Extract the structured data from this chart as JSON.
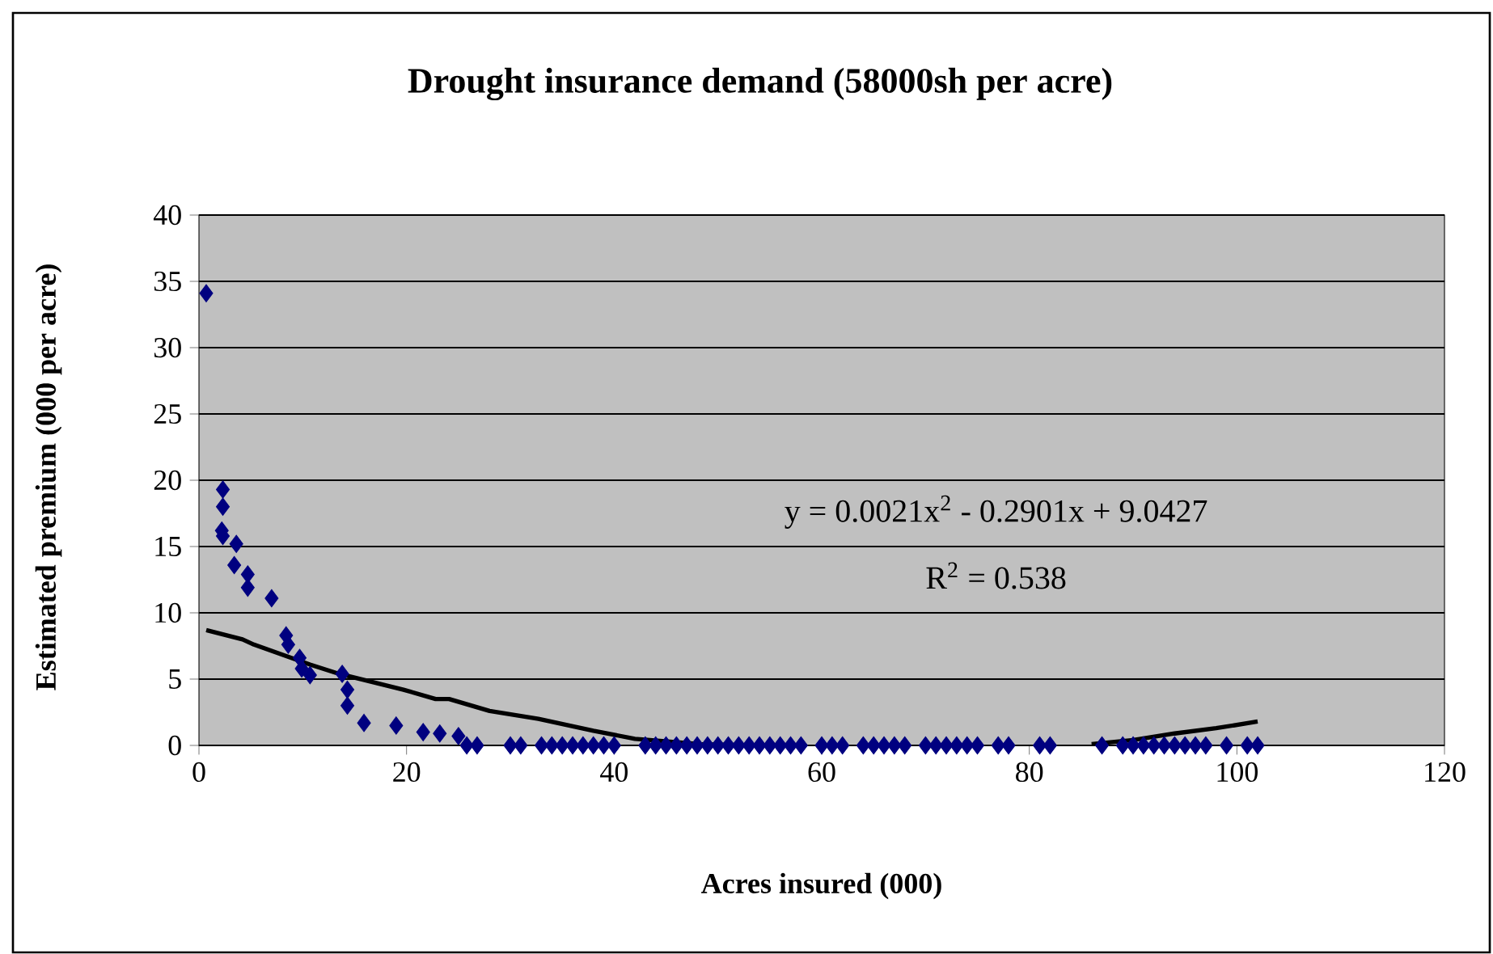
{
  "chart_data": {
    "type": "scatter",
    "title": "Drought insurance demand (58000sh per acre)",
    "xlabel": "Acres insured (000)",
    "ylabel": "Estimated premium (000 per acre)",
    "xlim": [
      0,
      120
    ],
    "ylim": [
      0,
      40
    ],
    "xticks": [
      0,
      20,
      40,
      60,
      80,
      100,
      120
    ],
    "yticks": [
      0,
      5,
      10,
      15,
      20,
      25,
      30,
      35,
      40
    ],
    "grid": "y",
    "marker": "diamond",
    "annotations": [
      "y = 0.0021x$^{2}$ - 0.2901x + 9.0427",
      "R$^{2}$ = 0.538"
    ],
    "series": [
      {
        "color": "#000080",
        "x": [
          0.7,
          2.3,
          2.3,
          2.2,
          2.3,
          3.6,
          3.4,
          4.7,
          4.7,
          7.0,
          8.4,
          8.6,
          9.7,
          9.9,
          10.7,
          13.8,
          14.3,
          14.3,
          15.9,
          19.0,
          21.6,
          23.2,
          25.0,
          25.8,
          26.8,
          30,
          31,
          33,
          34,
          35,
          36,
          37,
          38,
          39,
          40,
          43,
          44,
          45,
          46,
          47,
          48,
          49,
          50,
          51,
          52,
          53,
          54,
          55,
          56,
          57,
          58,
          60,
          61,
          62,
          64,
          65,
          66,
          67,
          68,
          70,
          71,
          72,
          73,
          74,
          75,
          77,
          78,
          81,
          82,
          87,
          89,
          90,
          91,
          92,
          93,
          94,
          95,
          96,
          97,
          99,
          101,
          102
        ],
        "values": [
          34.1,
          19.3,
          18.0,
          16.2,
          15.8,
          15.2,
          13.6,
          12.9,
          11.9,
          11.1,
          8.3,
          7.6,
          6.6,
          5.8,
          5.3,
          5.4,
          4.2,
          3.0,
          1.7,
          1.5,
          1.0,
          0.9,
          0.7,
          0,
          0,
          0,
          0,
          0,
          0,
          0,
          0,
          0,
          0,
          0,
          0,
          0,
          0,
          0,
          0,
          0,
          0,
          0,
          0,
          0,
          0,
          0,
          0,
          0,
          0,
          0,
          0,
          0,
          0,
          0,
          0,
          0,
          0,
          0,
          0,
          0,
          0,
          0,
          0,
          0,
          0,
          0,
          0,
          0,
          0,
          0,
          0,
          0,
          0,
          0,
          0,
          0,
          0,
          0,
          0,
          0,
          0,
          0
        ]
      },
      {
        "type": "line",
        "color": "#000000",
        "marker": "none",
        "line_style": "solid",
        "x": [
          0.7,
          4.2,
          5.3,
          10.7,
          13.5,
          19.7,
          22.8,
          24.1,
          28.0,
          32.7,
          38.0,
          42.0,
          48.3,
          53.0,
          69,
          86,
          90,
          94,
          98,
          102
        ],
        "values": [
          8.7,
          8.0,
          7.6,
          6.1,
          5.4,
          4.2,
          3.5,
          3.5,
          2.6,
          2.0,
          1.1,
          0.5,
          0.1,
          0,
          null,
          0.1,
          0.4,
          0.9,
          1.3,
          1.8
        ]
      }
    ]
  }
}
